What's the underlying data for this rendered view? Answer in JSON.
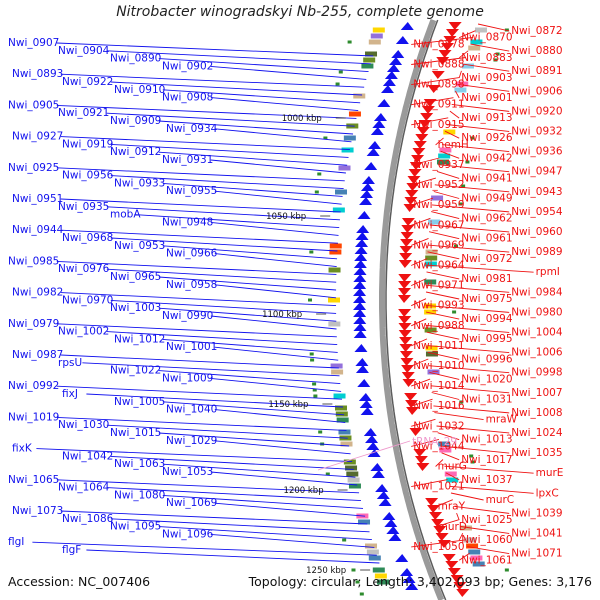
{
  "title": "Nitrobacter winogradskyi Nb-255, complete genome",
  "footer": {
    "accession": "Accession: NC_007406",
    "summary": "Topology: circular; Length: 3,402,093 bp; Genes: 3,176"
  },
  "colors": {
    "left_strand": "#1212ee",
    "right_strand": "#ee1212",
    "trna": "#ee99cc",
    "backbone": "#888888"
  },
  "kbp_markers": [
    "1000 kbp",
    "1050 kbp",
    "1100 kbp",
    "1150 kbp",
    "1200 kbp",
    "1250 kbp"
  ],
  "left_labels": [
    "Nwi_0907",
    "Nwi_0904",
    "Nwi_0890",
    "Nwi_0902",
    "Nwi_0893",
    "Nwi_0922",
    "Nwi_0910",
    "Nwi_0908",
    "Nwi_0905",
    "Nwi_0921",
    "Nwi_0909",
    "Nwi_0934",
    "Nwi_0927",
    "Nwi_0919",
    "Nwi_0912",
    "Nwi_0931",
    "Nwi_0925",
    "Nwi_0956",
    "Nwi_0933",
    "Nwi_0955",
    "Nwi_0951",
    "Nwi_0935",
    "mobA",
    "Nwi_0948",
    "Nwi_0944",
    "Nwi_0968",
    "Nwi_0953",
    "Nwi_0966",
    "Nwi_0985",
    "Nwi_0976",
    "Nwi_0965",
    "Nwi_0958",
    "Nwi_0982",
    "Nwi_0970",
    "Nwi_1003",
    "Nwi_0990",
    "Nwi_0979",
    "Nwi_1002",
    "Nwi_1012",
    "Nwi_1001",
    "Nwi_0987",
    "rpsU",
    "Nwi_1022",
    "Nwi_1009",
    "Nwi_0992",
    "fixJ",
    "Nwi_1005",
    "Nwi_1040",
    "Nwi_1019",
    "Nwi_1030",
    "Nwi_1015",
    "Nwi_1029",
    "fixK",
    "Nwi_1042",
    "Nwi_1063",
    "Nwi_1053",
    "Nwi_1065",
    "Nwi_1064",
    "Nwi_1080",
    "Nwi_1069",
    "Nwi_1073",
    "Nwi_1086",
    "Nwi_1095",
    "Nwi_1096",
    "flgI",
    "flgF"
  ],
  "right_labels": [
    "Nwi_0872",
    "Nwi_0870",
    "Nwi_0878",
    "Nwi_0880",
    "Nwi_0883",
    "Nwi_0888",
    "Nwi_0891",
    "Nwi_0903",
    "Nwi_0898",
    "Nwi_0906",
    "Nwi_0901",
    "Nwi_0911",
    "Nwi_0920",
    "Nwi_0913",
    "Nwi_0915",
    "Nwi_0932",
    "Nwi_0926",
    "hemH",
    "Nwi_0936",
    "Nwi_0942",
    "Nwi_0937",
    "Nwi_0947",
    "Nwi_0941",
    "Nwi_0952",
    "Nwi_0943",
    "Nwi_0949",
    "Nwi_0959",
    "Nwi_0954",
    "Nwi_0962",
    "Nwi_0967",
    "Nwi_0960",
    "Nwi_0961",
    "Nwi_0969",
    "Nwi_0989",
    "Nwi_0972",
    "Nwi_0964",
    "rpmI",
    "Nwi_0981",
    "Nwi_0971",
    "Nwi_0984",
    "Nwi_0975",
    "Nwi_0993",
    "Nwi_0980",
    "Nwi_0994",
    "Nwi_0988",
    "Nwi_1004",
    "Nwi_0995",
    "Nwi_1011",
    "Nwi_1006",
    "Nwi_0996",
    "Nwi_1010",
    "Nwi_0998",
    "Nwi_1020",
    "Nwi_1014",
    "Nwi_1007",
    "Nwi_1031",
    "Nwi_1016",
    "Nwi_1008",
    "mraW",
    "Nwi_1032",
    "Nwi_1024",
    "Nwi_1013",
    "Nwi_1044",
    "Nwi_1035",
    "Nwi_1017",
    "murG",
    "murE",
    "Nwi_1037",
    "Nwi_1021",
    "lpxC",
    "murC",
    "mraY",
    "Nwi_1039",
    "Nwi_1025",
    "murD",
    "Nwi_1041",
    "Nwi_1060",
    "Nwi_1050",
    "Nwi_1071",
    "Nwi_1061"
  ],
  "trna_label": "tRNA_29"
}
